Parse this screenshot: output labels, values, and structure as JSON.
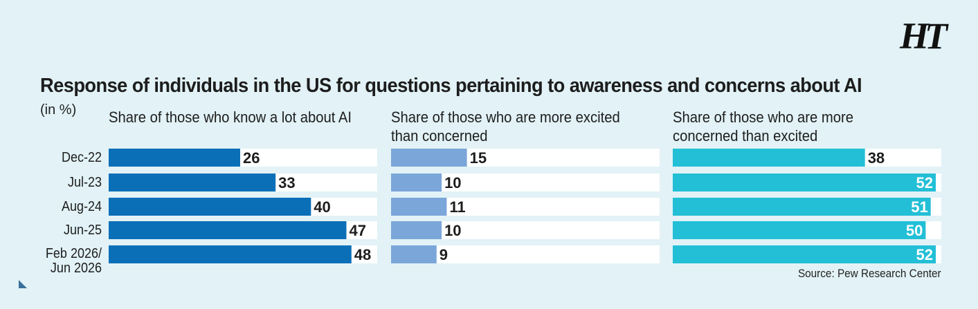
{
  "logo": "HT",
  "chart_data": {
    "type": "bar",
    "orientation": "horizontal",
    "title": "Response of individuals in the US for questions pertaining to awareness and concerns about AI",
    "unit_label": "(in %)",
    "categories": [
      "Dec-22",
      "Jul-23",
      "Aug-24",
      "Jun-25",
      "Feb 2026/\nJun 2026"
    ],
    "xlim": [
      0,
      52
    ],
    "series": [
      {
        "name": "Share of those who know a lot about AI",
        "color": "#0b6fb8",
        "values": [
          26,
          33,
          40,
          47,
          48
        ]
      },
      {
        "name": "Share of those who are more excited than concerned",
        "color": "#7ba6d9",
        "values": [
          15,
          10,
          11,
          10,
          9
        ]
      },
      {
        "name": "Share of those who are more concerned than excited",
        "color": "#22bfd6",
        "values": [
          38,
          52,
          51,
          50,
          52
        ]
      }
    ],
    "source": "Source: Pew Research Center"
  }
}
